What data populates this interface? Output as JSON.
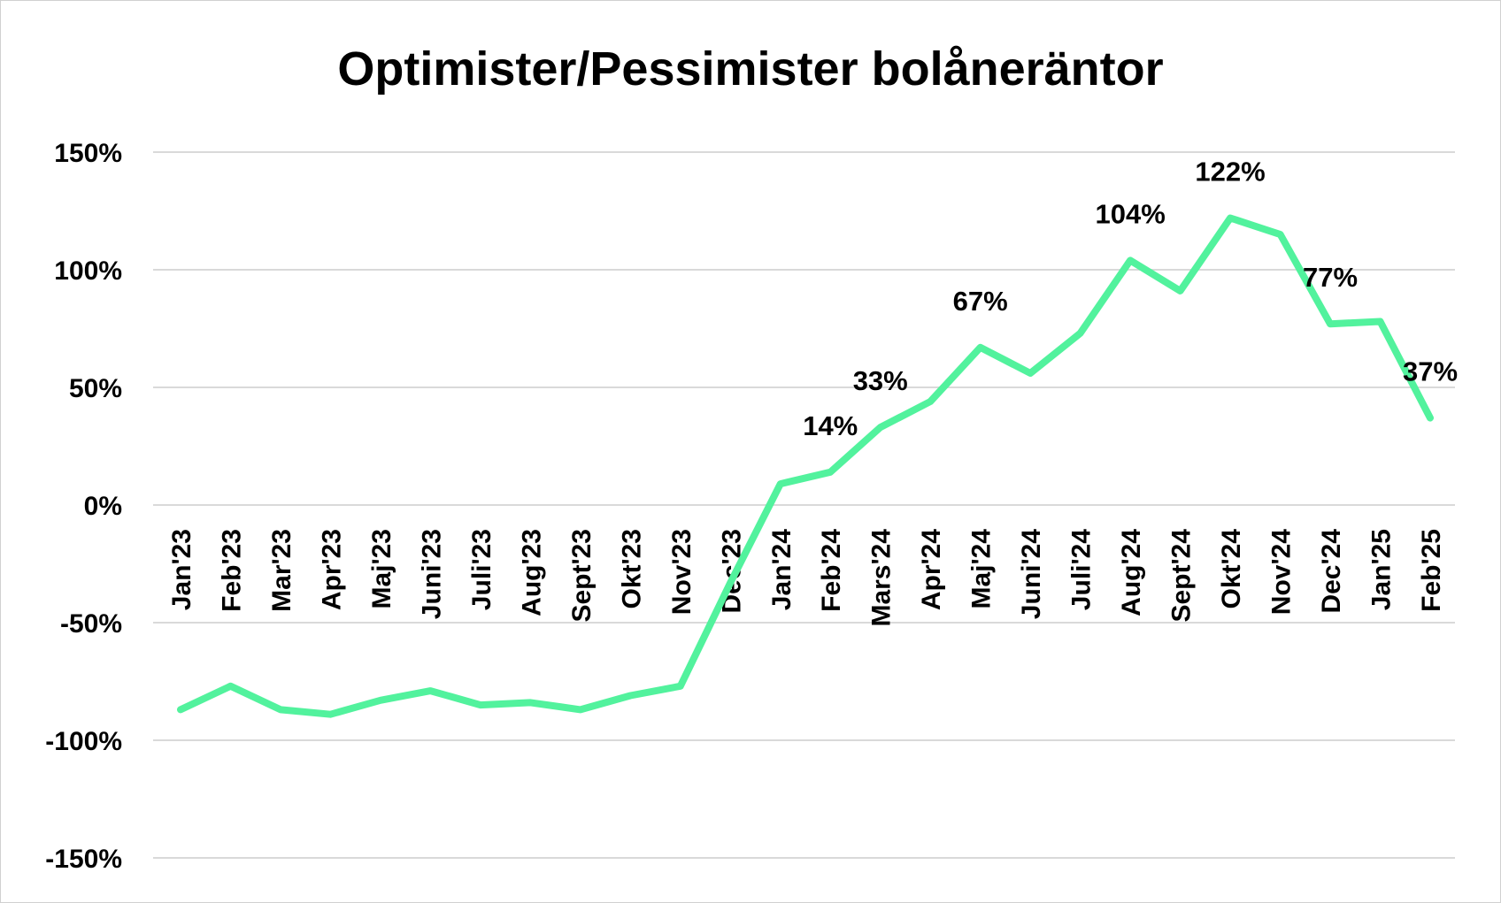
{
  "chart_data": {
    "type": "line",
    "title": "Optimister/Pessimister bolåneräntor",
    "xlabel": "",
    "ylabel": "",
    "ylim": [
      -150,
      150
    ],
    "yticks": [
      150,
      100,
      50,
      0,
      -50,
      -100,
      -150
    ],
    "ytick_labels": [
      "150%",
      "100%",
      "50%",
      "0%",
      "-50%",
      "-100%",
      "-150%"
    ],
    "grid": true,
    "legend": "none",
    "categories": [
      "Jan'23",
      "Feb'23",
      "Mar'23",
      "Apr'23",
      "Maj'23",
      "Juni'23",
      "Juli'23",
      "Aug'23",
      "Sept'23",
      "Okt'23",
      "Nov'23",
      "Dec'23",
      "Jan'24",
      "Feb'24",
      "Mars'24",
      "Apr'24",
      "Maj'24",
      "Juni'24",
      "Juli'24",
      "Aug'24",
      "Sept'24",
      "Okt'24",
      "Nov'24",
      "Dec'24",
      "Jan'25",
      "Feb'25"
    ],
    "series": [
      {
        "color": "#52F29D",
        "values": [
          -87,
          -77,
          -87,
          -89,
          -83,
          -79,
          -85,
          -84,
          -87,
          -81,
          -77,
          -33,
          9,
          14,
          33,
          44,
          67,
          56,
          73,
          104,
          91,
          122,
          115,
          77,
          78,
          37
        ]
      }
    ],
    "data_labels": [
      {
        "index": 13,
        "text": "14%"
      },
      {
        "index": 14,
        "text": "33%"
      },
      {
        "index": 16,
        "text": "67%"
      },
      {
        "index": 19,
        "text": "104%"
      },
      {
        "index": 21,
        "text": "122%"
      },
      {
        "index": 23,
        "text": "77%"
      },
      {
        "index": 25,
        "text": "37%"
      }
    ]
  }
}
